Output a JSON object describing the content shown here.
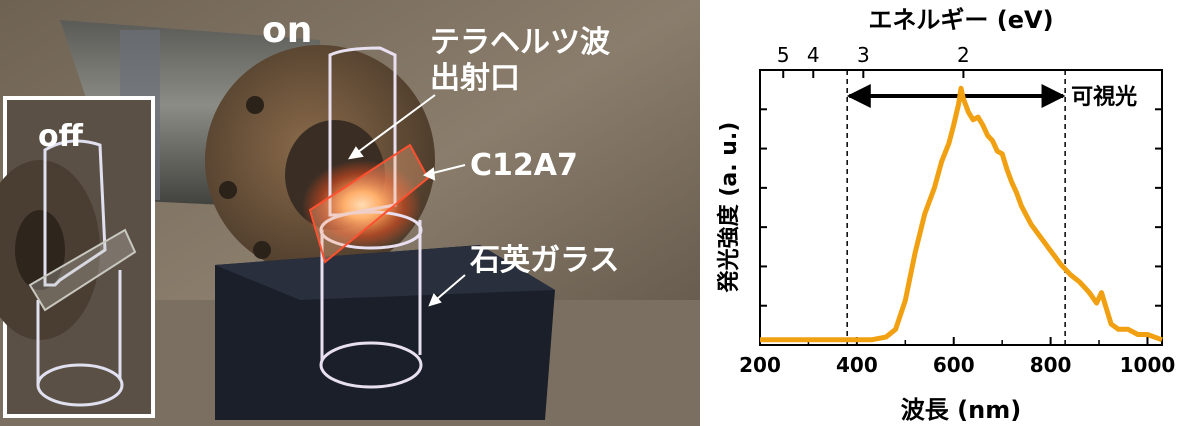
{
  "photo": {
    "label_on": "on",
    "label_off": "off",
    "label_emitter": [
      "テラヘルツ波",
      "出射口"
    ],
    "label_sample": "C12A7",
    "label_tube": "石英ガラス"
  },
  "chart_data": {
    "type": "line",
    "series": [
      {
        "color": "#f0a010",
        "x": [
          200,
          300,
          380,
          430,
          460,
          480,
          500,
          520,
          540,
          560,
          575,
          590,
          600,
          610,
          615,
          620,
          630,
          640,
          650,
          660,
          670,
          680,
          690,
          700,
          710,
          720,
          730,
          740,
          760,
          780,
          800,
          820,
          840,
          860,
          880,
          895,
          905,
          915,
          925,
          940,
          960,
          980,
          1000,
          1030
        ],
        "y": [
          0.02,
          0.02,
          0.02,
          0.02,
          0.03,
          0.06,
          0.17,
          0.35,
          0.5,
          0.6,
          0.7,
          0.77,
          0.84,
          0.92,
          0.98,
          0.94,
          0.89,
          0.86,
          0.87,
          0.84,
          0.8,
          0.78,
          0.74,
          0.73,
          0.67,
          0.62,
          0.58,
          0.53,
          0.46,
          0.41,
          0.36,
          0.31,
          0.27,
          0.24,
          0.2,
          0.16,
          0.2,
          0.14,
          0.08,
          0.06,
          0.06,
          0.04,
          0.04,
          0.02
        ]
      }
    ],
    "xlabel": "波長 (nm)",
    "ylabel": "発光強度 (a. u.)",
    "x_ticks": [
      200,
      400,
      600,
      800,
      1000
    ],
    "xlim": [
      200,
      1030
    ],
    "ylim": [
      0,
      1.05
    ],
    "top_axis": {
      "label": "エネルギー (eV)",
      "ticks": [
        {
          "label": "5",
          "ev": 5
        },
        {
          "label": "4",
          "ev": 4
        },
        {
          "label": "3",
          "ev": 3
        },
        {
          "label": "2",
          "ev": 2
        }
      ]
    },
    "dashed_lines_x": [
      380,
      830
    ],
    "visible_label": "可視光",
    "grid": false
  }
}
